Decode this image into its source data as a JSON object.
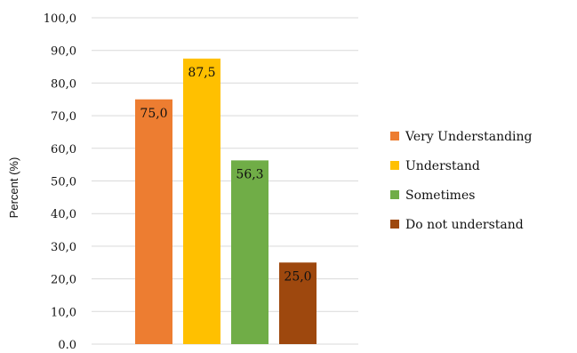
{
  "chart_data": {
    "type": "bar",
    "title": "",
    "xlabel": "",
    "ylabel": "Percent (%)",
    "ylim": [
      0,
      100
    ],
    "yticks": [
      "0.0",
      "10,0",
      "20,0",
      "30,0",
      "40,0",
      "50,0",
      "60,0",
      "70,0",
      "80,0",
      "90,0",
      "100,0"
    ],
    "grid": true,
    "legend_position": "right",
    "series": [
      {
        "name": "Very Understanding",
        "value": 75.0,
        "label": "75,0",
        "color": "#ED7D31"
      },
      {
        "name": "Understand",
        "value": 87.5,
        "label": "87,5",
        "color": "#FFC000"
      },
      {
        "name": "Sometimes",
        "value": 56.3,
        "label": "56,3",
        "color": "#70AD47"
      },
      {
        "name": "Do not understand",
        "value": 25.0,
        "label": "25,0",
        "color": "#9E480E"
      }
    ]
  }
}
